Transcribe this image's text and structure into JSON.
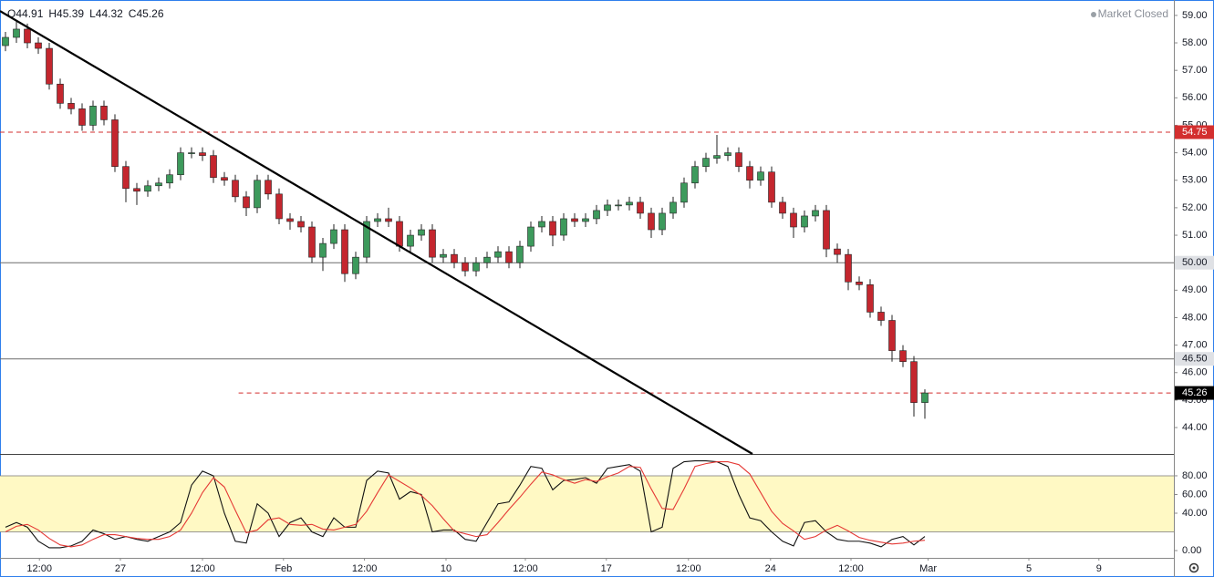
{
  "chart_data": {
    "type": "candlestick",
    "ohlc_legend": [
      {
        "label": "O",
        "value": 44.91
      },
      {
        "label": "H",
        "value": 45.39
      },
      {
        "label": "L",
        "value": 44.32
      },
      {
        "label": "C",
        "value": 45.26
      }
    ],
    "status": "Market Closed",
    "xlim": [
      -0.5,
      106.75
    ],
    "xticks": [
      {
        "value": 3.1,
        "label": "12:00"
      },
      {
        "value": 10.5,
        "label": "27"
      },
      {
        "value": 18,
        "label": "12:00"
      },
      {
        "value": 25.4,
        "label": "Feb"
      },
      {
        "value": 32.8,
        "label": "12:00"
      },
      {
        "value": 40.25,
        "label": "10"
      },
      {
        "value": 47.5,
        "label": "12:00"
      },
      {
        "value": 54.9,
        "label": "17"
      },
      {
        "value": 62.4,
        "label": "12:00"
      },
      {
        "value": 69.9,
        "label": "24"
      },
      {
        "value": 77.25,
        "label": "12:00"
      },
      {
        "value": 84.3,
        "label": "Mar"
      },
      {
        "value": 93.5,
        "label": "5"
      },
      {
        "value": 99.9,
        "label": "9"
      }
    ],
    "ylim": [
      43.04,
      59.56
    ],
    "yticks": [
      {
        "value": 44,
        "label": "44.00"
      },
      {
        "value": 45,
        "label": "45.00"
      },
      {
        "value": 46,
        "label": "46.00"
      },
      {
        "value": 47,
        "label": "47.00"
      },
      {
        "value": 48,
        "label": "48.00"
      },
      {
        "value": 49,
        "label": "49.00"
      },
      {
        "value": 50,
        "label": "50.00"
      },
      {
        "value": 51,
        "label": "51.00"
      },
      {
        "value": 52,
        "label": "52.00"
      },
      {
        "value": 53,
        "label": "53.00"
      },
      {
        "value": 54,
        "label": "54.00"
      },
      {
        "value": 55,
        "label": "55.00"
      },
      {
        "value": 56,
        "label": "56.00"
      },
      {
        "value": 57,
        "label": "57.00"
      },
      {
        "value": 58,
        "label": "58.00"
      },
      {
        "value": 59,
        "label": "59.00"
      }
    ],
    "up_color": "#3d9a5c",
    "down_color": "#c4262e",
    "open": [
      57.9,
      58.2,
      58.5,
      58.0,
      57.8,
      56.5,
      55.8,
      55.6,
      55.0,
      55.7,
      55.2,
      53.5,
      52.7,
      52.6,
      52.8,
      52.9,
      53.2,
      54.0,
      54.0,
      53.9,
      53.1,
      53.0,
      52.4,
      52.0,
      53.0,
      52.5,
      51.6,
      51.5,
      51.3,
      50.2,
      50.7,
      51.2,
      49.6,
      50.2,
      51.5,
      51.6,
      51.5,
      50.6,
      51.0,
      51.2,
      50.2,
      50.3,
      50.0,
      49.7,
      50.0,
      50.2,
      50.4,
      50.0,
      50.6,
      51.3,
      51.5,
      51.0,
      51.6,
      51.5,
      51.6,
      51.9,
      52.1,
      52.1,
      52.2,
      51.8,
      51.2,
      51.8,
      52.2,
      52.9,
      53.5,
      53.8,
      53.9,
      54.0,
      53.5,
      53.0,
      53.3,
      52.2,
      51.8,
      51.3,
      51.7,
      51.9,
      50.5,
      50.3,
      49.3,
      49.2,
      48.2,
      47.9,
      46.8,
      46.4,
      44.91
    ],
    "high": [
      58.4,
      58.8,
      58.7,
      58.2,
      58.0,
      56.7,
      56.0,
      55.8,
      55.9,
      55.9,
      55.4,
      53.7,
      52.9,
      53.0,
      53.1,
      53.4,
      54.2,
      54.2,
      54.2,
      54.1,
      53.3,
      53.2,
      52.6,
      53.2,
      53.2,
      52.7,
      51.8,
      51.7,
      51.5,
      50.9,
      51.4,
      51.4,
      50.4,
      51.7,
      51.8,
      52.0,
      51.7,
      51.2,
      51.4,
      51.4,
      50.5,
      50.5,
      50.2,
      50.2,
      50.4,
      50.6,
      50.6,
      50.8,
      51.5,
      51.7,
      51.7,
      51.8,
      51.8,
      51.8,
      52.1,
      52.3,
      52.3,
      52.4,
      52.4,
      52.0,
      52.0,
      52.4,
      53.1,
      53.7,
      54.0,
      54.65,
      54.2,
      54.2,
      53.7,
      53.5,
      53.5,
      52.4,
      52.0,
      51.9,
      52.1,
      52.1,
      50.7,
      50.5,
      49.5,
      49.4,
      48.4,
      48.1,
      47.0,
      46.6,
      45.39
    ],
    "low": [
      57.7,
      58.0,
      57.8,
      57.6,
      56.3,
      55.6,
      55.4,
      54.8,
      54.8,
      55.0,
      53.3,
      52.2,
      52.1,
      52.4,
      52.6,
      52.7,
      53.0,
      53.8,
      53.7,
      52.9,
      52.8,
      52.2,
      51.7,
      51.8,
      52.3,
      51.4,
      51.2,
      51.1,
      50.0,
      49.7,
      50.5,
      49.3,
      49.4,
      50.0,
      51.3,
      51.3,
      50.4,
      50.4,
      50.8,
      50.0,
      50.0,
      49.8,
      49.5,
      49.5,
      49.8,
      50.0,
      49.8,
      49.8,
      50.4,
      51.1,
      50.6,
      50.8,
      51.3,
      51.3,
      51.4,
      51.7,
      51.9,
      51.9,
      51.6,
      50.9,
      51.0,
      51.6,
      52.0,
      52.7,
      53.3,
      53.6,
      53.7,
      53.3,
      52.7,
      52.8,
      52.0,
      51.6,
      50.9,
      51.1,
      51.5,
      50.2,
      50.0,
      49.0,
      49.0,
      48.0,
      47.7,
      46.4,
      46.2,
      44.4,
      44.32
    ],
    "close": [
      58.2,
      58.5,
      58.0,
      57.8,
      56.5,
      55.8,
      55.6,
      55.0,
      55.7,
      55.2,
      53.5,
      52.7,
      52.6,
      52.8,
      52.9,
      53.2,
      54.0,
      54.0,
      53.9,
      53.1,
      53.0,
      52.4,
      52.0,
      53.0,
      52.5,
      51.6,
      51.5,
      51.3,
      50.2,
      50.7,
      51.2,
      49.6,
      50.2,
      51.5,
      51.6,
      51.5,
      50.6,
      51.0,
      51.2,
      50.2,
      50.3,
      50.0,
      49.7,
      50.0,
      50.2,
      50.4,
      50.0,
      50.6,
      51.3,
      51.5,
      51.0,
      51.6,
      51.5,
      51.6,
      51.9,
      52.1,
      52.1,
      52.2,
      51.8,
      51.2,
      51.8,
      52.2,
      52.9,
      53.5,
      53.8,
      53.9,
      54.0,
      53.5,
      53.0,
      53.3,
      52.2,
      51.8,
      51.3,
      51.7,
      51.9,
      50.5,
      50.3,
      49.3,
      49.2,
      48.2,
      47.9,
      46.8,
      46.4,
      44.91,
      45.26
    ],
    "levels": [
      {
        "value": 54.75,
        "label": "54.75",
        "color": "#d32f2f",
        "style": "dashed",
        "label_bg": "#d32f2f",
        "label_color": "#ffffff",
        "x_start": -0.5
      },
      {
        "value": 50,
        "label": "50.00",
        "color": "#6b6b6b",
        "style": "solid",
        "label_bg": "#dfe1e5",
        "label_color": "#131722",
        "x_start": -0.5
      },
      {
        "value": 46.5,
        "label": "46.50",
        "color": "#6b6b6b",
        "style": "solid",
        "label_bg": "#dfe1e5",
        "label_color": "#131722",
        "x_start": -0.5
      },
      {
        "value": 45.26,
        "label": "45.26",
        "color": "#d32f2f",
        "style": "dashed",
        "label_bg": "#000000",
        "label_color": "#ffffff",
        "x_start": 21.3
      }
    ],
    "trendline": {
      "x": [
        -0.5,
        68.25
      ],
      "y": [
        59.16,
        43.04
      ],
      "color": "#000000"
    },
    "oscillator": {
      "type": "line",
      "ylim": [
        -7.8,
        102.4
      ],
      "yticks": [
        {
          "value": 0,
          "label": "0.00"
        },
        {
          "value": 40,
          "label": "40.00"
        },
        {
          "value": 60,
          "label": "60.00"
        },
        {
          "value": 80,
          "label": "80.00"
        }
      ],
      "band": [
        20,
        80
      ],
      "band_color": "#fff9c4",
      "series": [
        {
          "color": "#111111",
          "values": [
            25,
            30,
            25,
            10,
            3,
            3,
            5,
            10,
            22,
            18,
            12,
            15,
            12,
            10,
            15,
            20,
            30,
            70,
            85,
            80,
            40,
            10,
            8,
            50,
            40,
            15,
            30,
            35,
            20,
            15,
            35,
            25,
            25,
            75,
            85,
            83,
            55,
            63,
            60,
            20,
            22,
            22,
            12,
            10,
            30,
            50,
            52,
            70,
            90,
            88,
            65,
            75,
            76,
            78,
            72,
            88,
            90,
            92,
            85,
            20,
            25,
            88,
            95,
            96,
            96,
            95,
            90,
            60,
            35,
            32,
            20,
            10,
            5,
            30,
            32,
            20,
            12,
            10,
            10,
            8,
            4,
            12,
            15,
            6,
            15
          ]
        },
        {
          "color": "#e53935",
          "values": [
            20,
            26,
            28,
            22,
            13,
            6,
            4,
            6,
            12,
            17,
            17,
            15,
            13,
            12,
            12,
            15,
            22,
            40,
            62,
            78,
            68,
            43,
            19,
            22,
            33,
            35,
            28,
            27,
            28,
            23,
            22,
            25,
            28,
            42,
            62,
            81,
            74,
            67,
            59,
            48,
            34,
            21,
            18,
            15,
            17,
            30,
            44,
            57,
            71,
            84,
            81,
            76,
            72,
            76,
            74,
            79,
            83,
            90,
            89,
            66,
            45,
            44,
            66,
            90,
            93,
            95,
            95,
            92,
            82,
            62,
            42,
            29,
            21,
            12,
            15,
            22,
            27,
            21,
            14,
            11,
            9,
            7,
            8,
            10,
            11
          ]
        }
      ]
    }
  }
}
